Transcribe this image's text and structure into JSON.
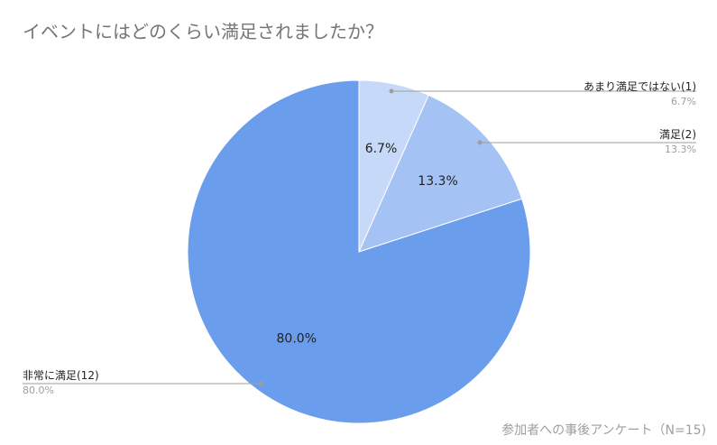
{
  "title": "イベントにはどのくらい満足されましたか？",
  "source_note": "参加者への事後アンケート（N=15)",
  "colors": {
    "title": "#757575",
    "leader_line": "#9e9e9e",
    "background": "#ffffff"
  },
  "chart_data": {
    "type": "pie",
    "title": "イベントにはどのくらい満足されましたか？",
    "slices": [
      {
        "label": "あまり満足ではない(1)",
        "value": 1,
        "percent": "6.7%",
        "color": "#c6d9f8"
      },
      {
        "label": "満足(2)",
        "value": 2,
        "percent": "13.3%",
        "color": "#a5c2f5"
      },
      {
        "label": "非常に満足(12)",
        "value": 12,
        "percent": "80.0%",
        "color": "#6b9ded"
      }
    ],
    "start_angle": "12 o'clock",
    "direction": "clockwise",
    "legend": "callout labels with leader lines"
  }
}
